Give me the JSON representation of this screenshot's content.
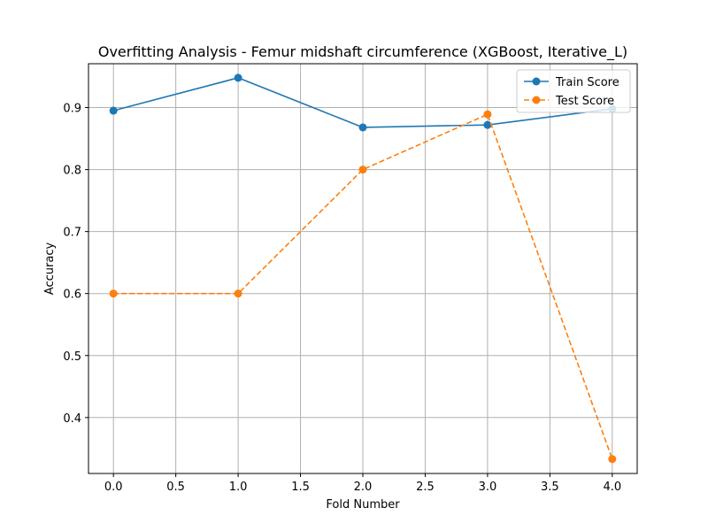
{
  "chart_data": {
    "type": "line",
    "title": "Overfitting Analysis - Femur midshaft circumference (XGBoost, Iterative_L)",
    "xlabel": "Fold Number",
    "ylabel": "Accuracy",
    "xlim": [
      -0.2,
      4.2
    ],
    "ylim": [
      0.3098,
      0.9707
    ],
    "xticks": [
      0.0,
      0.5,
      1.0,
      1.5,
      2.0,
      2.5,
      3.0,
      3.5,
      4.0
    ],
    "xtick_labels": [
      "0.0",
      "0.5",
      "1.0",
      "1.5",
      "2.0",
      "2.5",
      "3.0",
      "3.5",
      "4.0"
    ],
    "yticks": [
      0.4,
      0.5,
      0.6,
      0.7,
      0.8,
      0.9
    ],
    "ytick_labels": [
      "0.4",
      "0.5",
      "0.6",
      "0.7",
      "0.8",
      "0.9"
    ],
    "grid": true,
    "legend_position": "top-right",
    "x": [
      0,
      1,
      2,
      3,
      4
    ],
    "series": [
      {
        "name": "Train Score",
        "values": [
          0.895,
          0.948,
          0.868,
          0.872,
          0.898
        ],
        "color": "#1f77b4",
        "style": "solid",
        "marker": "circle"
      },
      {
        "name": "Test Score",
        "values": [
          0.6,
          0.6,
          0.8,
          0.889,
          0.333
        ],
        "color": "#ff7f0e",
        "style": "dashed",
        "marker": "circle"
      }
    ]
  }
}
